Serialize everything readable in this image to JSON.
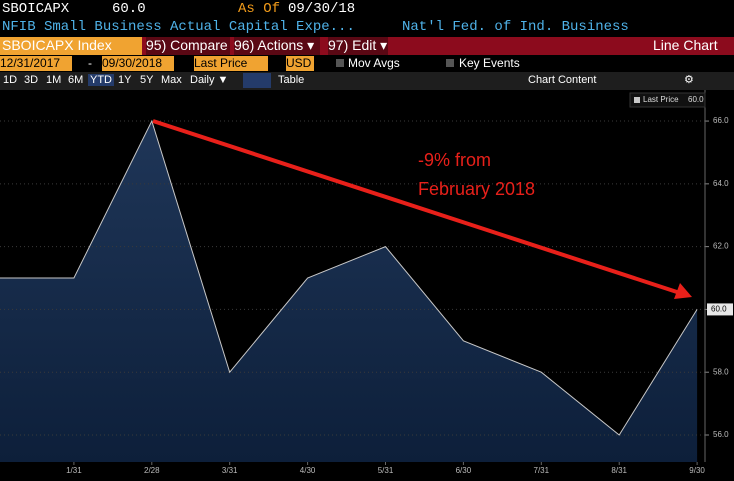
{
  "header": {
    "ticker": "SBOICAPX",
    "price": "60.0",
    "as_of": "As Of",
    "date": "09/30/18",
    "description": "NFIB Small Business Actual Capital Expe...",
    "source": "Nat'l Fed. of Ind. Business"
  },
  "toolbar": {
    "security": "SBOICAPX Index",
    "compare": "95) Compare",
    "actions": "96) Actions ▾",
    "edit": "97) Edit ▾",
    "view": "Line Chart",
    "start_date": "12/31/2017",
    "dash": "-",
    "end_date": "09/30/2018",
    "field": "Last Price",
    "currency": "USD",
    "mov_avgs": "Mov Avgs",
    "key_events": "Key Events",
    "ranges": [
      "1D",
      "3D",
      "1M",
      "6M",
      "YTD",
      "1Y",
      "5Y",
      "Max"
    ],
    "period": "Daily ▼",
    "table": "Table",
    "chart_content": "Chart Content"
  },
  "chart_data": {
    "type": "line",
    "categories": [
      null,
      "1/31",
      "2/28",
      "3/31",
      "4/30",
      "5/31",
      "6/30",
      "7/31",
      "8/31",
      "9/30"
    ],
    "series": [
      {
        "name": "Last Price",
        "color": "#c8c8c8",
        "values": [
          61,
          61,
          66,
          58,
          61,
          62,
          59,
          58,
          56,
          60
        ],
        "value_labels": [
          null,
          null,
          null,
          null,
          null,
          null,
          null,
          null,
          null,
          "60.0"
        ]
      }
    ],
    "ylim": [
      55.14,
      66.83
    ],
    "yticks": [
      {
        "value": 56,
        "label": "56.0"
      },
      {
        "value": 58,
        "label": "58.0"
      },
      {
        "value": 60,
        "label": "60.0"
      },
      {
        "value": 62,
        "label": "62.0"
      },
      {
        "value": 64,
        "label": "64.0"
      },
      {
        "value": 66,
        "label": "66.0"
      }
    ],
    "grid": true,
    "axis_side": "right",
    "legend": "top-right",
    "annotation": [
      "-9% from",
      "February 2018"
    ],
    "annotation_color": "#e8201a"
  }
}
